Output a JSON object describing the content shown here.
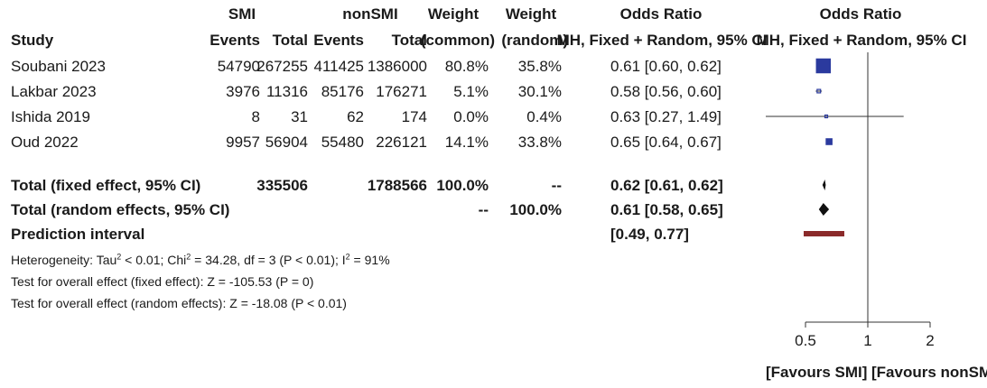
{
  "headers": {
    "group_smi": "SMI",
    "group_nonsmi": "nonSMI",
    "weight1_top": "Weight",
    "weight2_top": "Weight",
    "or_top": "Odds Ratio",
    "plot_top": "Odds Ratio",
    "study": "Study",
    "events1": "Events",
    "total1": "Total",
    "events2": "Events",
    "total2": "Total",
    "weight1_sub": "(common)",
    "weight2_sub": "(random)",
    "or_sub": "MH, Fixed + Random, 95% CI",
    "plot_sub": "MH, Fixed + Random, 95% CI"
  },
  "studies": [
    {
      "name": "Soubani 2023",
      "events_smi": "54790",
      "total_smi": "267255",
      "events_nonsmi": "411425",
      "total_nonsmi": "1386000",
      "weight_common": "80.8%",
      "weight_random": "35.8%",
      "or_text": "0.61 [0.60, 0.62]"
    },
    {
      "name": "Lakbar 2023",
      "events_smi": "3976",
      "total_smi": "11316",
      "events_nonsmi": "85176",
      "total_nonsmi": "176271",
      "weight_common": "5.1%",
      "weight_random": "30.1%",
      "or_text": "0.58 [0.56, 0.60]"
    },
    {
      "name": "Ishida 2019",
      "events_smi": "8",
      "total_smi": "31",
      "events_nonsmi": "62",
      "total_nonsmi": "174",
      "weight_common": "0.0%",
      "weight_random": "0.4%",
      "or_text": "0.63 [0.27, 1.49]"
    },
    {
      "name": "Oud 2022",
      "events_smi": "9957",
      "total_smi": "56904",
      "events_nonsmi": "55480",
      "total_nonsmi": "226121",
      "weight_common": "14.1%",
      "weight_random": "33.8%",
      "or_text": "0.65 [0.64, 0.67]"
    }
  ],
  "summary": {
    "fixed": {
      "label": "Total (fixed effect, 95% CI)",
      "total_smi": "335506",
      "total_nonsmi": "1788566",
      "weight_common": "100.0%",
      "weight_random": "--",
      "or_text": "0.62 [0.61, 0.62]"
    },
    "random": {
      "label": "Total (random effects, 95% CI)",
      "weight_common": "--",
      "weight_random": "100.0%",
      "or_text": "0.61 [0.58, 0.65]"
    },
    "prediction": {
      "label": "Prediction interval",
      "or_text": "[0.49, 0.77]"
    }
  },
  "footnotes": {
    "heterogeneity_a": "Heterogeneity: Tau",
    "heterogeneity_b": " < 0.01; Chi",
    "heterogeneity_c": " = 34.28, df = 3 (P < 0.01); I",
    "heterogeneity_d": " = 91%",
    "sup2": "2",
    "fixed_test": "Test for overall effect (fixed effect): Z = -105.53 (P = 0)",
    "random_test": "Test for overall effect (random effects): Z = -18.08 (P < 0.01)"
  },
  "favours": {
    "left": "[Favours SMI]",
    "right": "[Favours nonSMI]"
  },
  "colors": {
    "square": "#2b3a9e",
    "diamond": "#111111",
    "prediction": "#8b2a2a",
    "line": "#333333"
  },
  "chart_data": {
    "type": "forest",
    "title": "Odds Ratio",
    "xlabel": "MH, Fixed + Random, 95% CI",
    "x_scale": "log",
    "xlim": [
      0.4,
      2.5
    ],
    "xticks": [
      0.5,
      1,
      2
    ],
    "reference_line": 1,
    "studies": [
      {
        "name": "Soubani 2023",
        "or": 0.61,
        "lower": 0.6,
        "upper": 0.62,
        "weight_common": 80.8
      },
      {
        "name": "Lakbar 2023",
        "or": 0.58,
        "lower": 0.56,
        "upper": 0.6,
        "weight_common": 5.1
      },
      {
        "name": "Ishida 2019",
        "or": 0.63,
        "lower": 0.27,
        "upper": 1.49,
        "weight_common": 0.0
      },
      {
        "name": "Oud 2022",
        "or": 0.65,
        "lower": 0.64,
        "upper": 0.67,
        "weight_common": 14.1
      }
    ],
    "fixed_effect": {
      "or": 0.62,
      "lower": 0.61,
      "upper": 0.62
    },
    "random_effects": {
      "or": 0.61,
      "lower": 0.58,
      "upper": 0.65
    },
    "prediction_interval": {
      "lower": 0.49,
      "upper": 0.77
    }
  }
}
